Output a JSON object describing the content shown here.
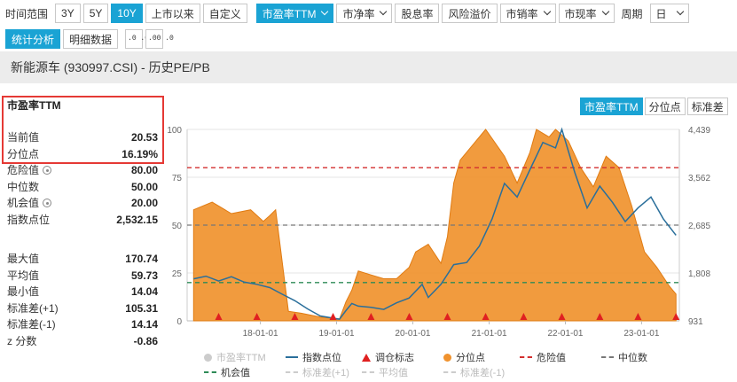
{
  "toolbar": {
    "time_range_label": "时间范围",
    "ranges": [
      "3Y",
      "5Y",
      "10Y",
      "上市以来",
      "自定义"
    ],
    "metric_label": "市盈率TTM",
    "metric_label_selected": true,
    "other_metrics": [
      "市净率",
      "股息率",
      "风险溢价",
      "市销率",
      "市现率"
    ],
    "period_label": "周期",
    "period_value": "日"
  },
  "subtoolbar": {
    "stat_tab": "统计分析",
    "detail_tab": "明细数据",
    "decimal_up": ".0 .00",
    "decimal_down": ".00 .0"
  },
  "title": "新能源车 (930997.CSI) - 历史PE/PB",
  "stats": {
    "title": "市盈率TTM",
    "current_label": "当前值",
    "current": "20.53",
    "pct_label": "分位点",
    "pct": "16.19%",
    "danger_label": "危险值",
    "danger": "80.00",
    "median_label": "中位数",
    "median": "50.00",
    "opportunity_label": "机会值",
    "opportunity": "20.00",
    "index_label": "指数点位",
    "index": "2,532.15",
    "max_label": "最大值",
    "max": "170.74",
    "mean_label": "平均值",
    "mean": "59.73",
    "min_label": "最小值",
    "min": "14.04",
    "sdp_label": "标准差(+1)",
    "sdp": "105.31",
    "sdm_label": "标准差(-1)",
    "sdm": "14.14",
    "z_label": "z 分数",
    "z": "-0.86"
  },
  "chart_tabs": [
    "市盈率TTM",
    "分位点",
    "标准差"
  ],
  "chart_data": {
    "type": "area",
    "x_ticks": [
      "18-01-01",
      "19-01-01",
      "20-01-01",
      "21-01-01",
      "22-01-01",
      "23-01-01"
    ],
    "y_left_ticks": [
      "0",
      "25",
      "50",
      "75",
      "100"
    ],
    "y_left_range": [
      0,
      100
    ],
    "y_right_ticks": [
      "931",
      "1,808",
      "2,685",
      "3,562",
      "4,439"
    ],
    "y_right_range": [
      931,
      4439
    ],
    "reference_lines": [
      {
        "name": "危险值",
        "value": 80,
        "color": "#d32f2f",
        "style": "dashed"
      },
      {
        "name": "中位数",
        "value": 50,
        "color": "#777777",
        "style": "dashed"
      },
      {
        "name": "机会值",
        "value": 20,
        "color": "#2e8b57",
        "style": "dashed"
      }
    ],
    "series": [
      {
        "name": "分位点",
        "axis": "left",
        "color": "#f0922e",
        "x": [
          "2017-02",
          "2017-05",
          "2017-08",
          "2017-11",
          "2018-01",
          "2018-02",
          "2018-03",
          "2018-05",
          "2018-07",
          "2018-10",
          "2019-01",
          "2019-02",
          "2019-03",
          "2019-04",
          "2019-06",
          "2019-08",
          "2019-10",
          "2019-12",
          "2020-01",
          "2020-03",
          "2020-05",
          "2020-06",
          "2020-07",
          "2020-08",
          "2020-10",
          "2020-12",
          "2021-03",
          "2021-05",
          "2021-07",
          "2021-08",
          "2021-10",
          "2021-11",
          "2022-01",
          "2022-03",
          "2022-05",
          "2022-07",
          "2022-09",
          "2022-11",
          "2023-01",
          "2023-03",
          "2023-05",
          "2023-06"
        ],
        "values": [
          58,
          62,
          56,
          58,
          52,
          55,
          58,
          5,
          4,
          2,
          1,
          10,
          16,
          26,
          24,
          22,
          22,
          28,
          36,
          40,
          30,
          44,
          72,
          84,
          92,
          100,
          86,
          72,
          88,
          100,
          96,
          100,
          94,
          80,
          70,
          86,
          80,
          60,
          36,
          28,
          18,
          14
        ]
      },
      {
        "name": "指数点位",
        "axis": "right",
        "color": "#2a6f9b",
        "x": [
          "2017-02",
          "2017-04",
          "2017-06",
          "2017-08",
          "2017-10",
          "2017-12",
          "2018-02",
          "2018-04",
          "2018-06",
          "2018-08",
          "2018-10",
          "2019-01",
          "2019-02",
          "2019-03",
          "2019-04",
          "2019-06",
          "2019-08",
          "2019-10",
          "2019-12",
          "2020-02",
          "2020-03",
          "2020-05",
          "2020-07",
          "2020-09",
          "2020-11",
          "2021-01",
          "2021-03",
          "2021-05",
          "2021-07",
          "2021-09",
          "2021-11",
          "2021-12",
          "2022-02",
          "2022-04",
          "2022-06",
          "2022-08",
          "2022-10",
          "2022-12",
          "2023-02",
          "2023-04",
          "2023-06"
        ],
        "values": [
          1700,
          1750,
          1660,
          1740,
          1640,
          1600,
          1540,
          1420,
          1300,
          1150,
          1020,
          960,
          1120,
          1250,
          1200,
          1180,
          1140,
          1260,
          1350,
          1600,
          1360,
          1600,
          1960,
          2000,
          2300,
          2800,
          3450,
          3200,
          3700,
          4200,
          4100,
          4439,
          3650,
          3000,
          3400,
          3100,
          2750,
          3000,
          3200,
          2800,
          2500
        ]
      }
    ],
    "legend": [
      {
        "label": "市盈率TTM",
        "enabled": false
      },
      {
        "label": "指数点位",
        "enabled": true
      },
      {
        "label": "调仓标志",
        "enabled": true
      },
      {
        "label": "分位点",
        "enabled": true
      },
      {
        "label": "危险值",
        "enabled": true
      },
      {
        "label": "中位数",
        "enabled": true
      },
      {
        "label": "机会值",
        "enabled": true
      },
      {
        "label": "标准差(+1)",
        "enabled": false
      },
      {
        "label": "平均值",
        "enabled": false
      },
      {
        "label": "标准差(-1)",
        "enabled": false
      }
    ],
    "rebalance_markers": [
      "2017-06",
      "2017-12",
      "2018-06",
      "2018-12",
      "2019-06",
      "2019-12",
      "2020-06",
      "2020-12",
      "2021-06",
      "2021-12",
      "2022-06",
      "2022-12",
      "2023-06"
    ],
    "colors": {
      "accent": "#1aa3d4",
      "danger": "#d32f2f",
      "median": "#777777",
      "opportunity": "#2e8b57",
      "marker": "#e02020"
    }
  }
}
